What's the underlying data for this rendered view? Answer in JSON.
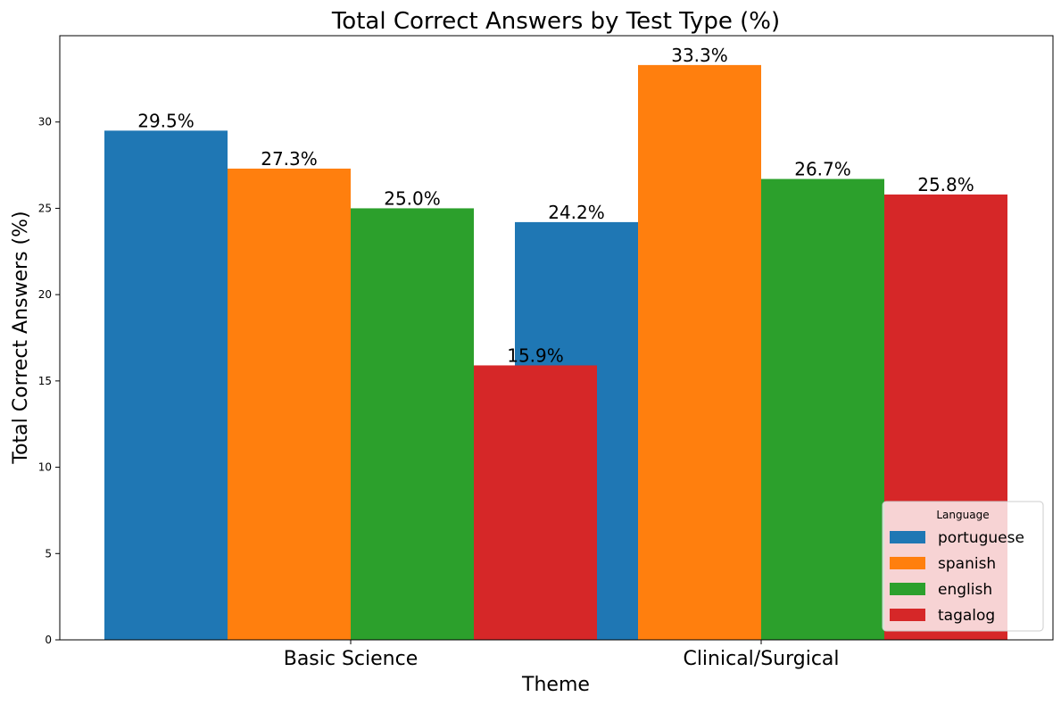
{
  "chart_data": {
    "type": "bar",
    "title": "Total Correct Answers by Test Type (%)",
    "xlabel": "Theme",
    "ylabel": "Total Correct Answers (%)",
    "categories": [
      "Basic Science",
      "Clinical/Surgical"
    ],
    "series": [
      {
        "name": "portuguese",
        "values": [
          29.5,
          24.2
        ],
        "labels": [
          "29.5%",
          "24.2%"
        ],
        "color": "#1f77b4"
      },
      {
        "name": "spanish",
        "values": [
          27.3,
          33.3
        ],
        "labels": [
          "27.3%",
          "33.3%"
        ],
        "color": "#ff7f0e"
      },
      {
        "name": "english",
        "values": [
          25.0,
          26.7
        ],
        "labels": [
          "25.0%",
          "26.7%"
        ],
        "color": "#2ca02c"
      },
      {
        "name": "tagalog",
        "values": [
          15.9,
          25.8
        ],
        "labels": [
          "15.9%",
          "25.8%"
        ],
        "color": "#d62728"
      }
    ],
    "ylim": [
      0,
      35
    ],
    "yticks": [
      "0",
      "5",
      "10",
      "15",
      "20",
      "25",
      "30"
    ],
    "grid": false,
    "legend": {
      "title": "Language",
      "position": "lower-right"
    }
  }
}
